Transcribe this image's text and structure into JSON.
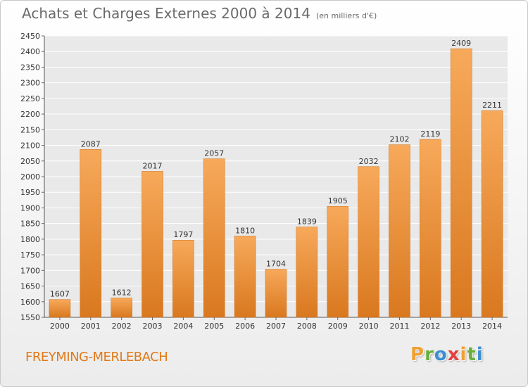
{
  "header": {
    "title": "Achats et Charges Externes 2000 à 2014",
    "unit": "(en milliers d'€)"
  },
  "footer": {
    "location": "FREYMING-MERLEBACH",
    "logo_letters": [
      "P",
      "r",
      "o",
      "x",
      "i",
      "t",
      "i"
    ],
    "logo_colors": [
      "#f0a030",
      "#6aae3a",
      "#3a8fd0",
      "#e43e3e",
      "#f0a030",
      "#6aae3a",
      "#3a8fd0"
    ]
  },
  "chart_data": {
    "type": "bar",
    "title": "Achats et Charges Externes 2000 à 2014",
    "categories": [
      "2000",
      "2001",
      "2002",
      "2003",
      "2004",
      "2005",
      "2006",
      "2007",
      "2008",
      "2009",
      "2010",
      "2011",
      "2012",
      "2013",
      "2014"
    ],
    "values": [
      1607,
      2087,
      1612,
      2017,
      1797,
      2057,
      1810,
      1704,
      1839,
      1905,
      2032,
      2102,
      2119,
      2409,
      2211
    ],
    "ylim": [
      1550,
      2450
    ],
    "ytick_step": 50,
    "grid": true,
    "legend": "none",
    "colors": {
      "bar_light": "#f7a95a",
      "bar_dark": "#d9781f"
    }
  }
}
